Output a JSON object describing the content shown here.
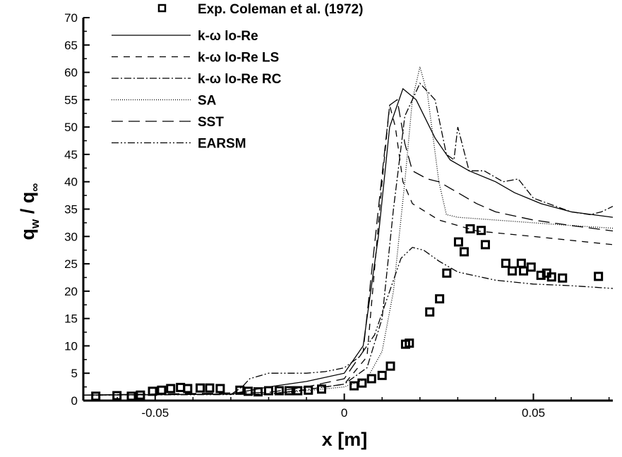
{
  "chart_data": {
    "type": "line",
    "title": "",
    "xlabel": "x [m]",
    "ylabel_main": "q",
    "ylabel_sub1": "w",
    "ylabel_sep": " / ",
    "ylabel_sub2": "∞",
    "xlim": [
      -0.069,
      0.071
    ],
    "ylim": [
      0,
      70
    ],
    "xticks": [
      -0.05,
      0,
      0.05
    ],
    "xtick_labels": [
      "-0.05",
      "0",
      "0.05"
    ],
    "yticks": [
      0,
      5,
      10,
      15,
      20,
      25,
      30,
      35,
      40,
      45,
      50,
      55,
      60,
      65,
      70
    ],
    "ytick_labels": [
      "0",
      "5",
      "10",
      "15",
      "20",
      "25",
      "30",
      "35",
      "40",
      "45",
      "50",
      "55",
      "60",
      "65",
      "70"
    ],
    "grid": false,
    "legend_position": "top-left",
    "experiment": {
      "name": "Exp. Coleman et al. (1972)",
      "x": [
        -0.0657,
        -0.0601,
        -0.0563,
        -0.0539,
        -0.0507,
        -0.0483,
        -0.0459,
        -0.0433,
        -0.0414,
        -0.0381,
        -0.0356,
        -0.0328,
        -0.0276,
        -0.0254,
        -0.0228,
        -0.02,
        -0.0172,
        -0.0146,
        -0.0123,
        -0.0095,
        -0.006,
        0.0026,
        0.0047,
        0.0072,
        0.01,
        0.0122,
        0.0162,
        0.0172,
        0.0226,
        0.0252,
        0.0271,
        0.0302,
        0.0317,
        0.0333,
        0.0362,
        0.0373,
        0.0427,
        0.0444,
        0.0468,
        0.0474,
        0.0494,
        0.052,
        0.0535,
        0.0548,
        0.0577,
        0.0672
      ],
      "y": [
        0.8,
        0.9,
        0.8,
        1.0,
        1.7,
        1.9,
        2.2,
        2.4,
        2.2,
        2.3,
        2.3,
        2.2,
        1.9,
        1.7,
        1.6,
        1.8,
        1.8,
        1.8,
        1.8,
        1.9,
        2.1,
        2.7,
        3.2,
        4.0,
        4.6,
        6.3,
        10.3,
        10.5,
        16.2,
        18.6,
        23.3,
        29.0,
        27.2,
        31.4,
        31.1,
        28.5,
        25.1,
        23.7,
        25.1,
        23.7,
        24.4,
        22.9,
        23.3,
        22.6,
        22.4,
        22.7
      ]
    },
    "series": [
      {
        "name": "k-ω lo-Re",
        "dash": "",
        "x": [
          -0.069,
          -0.03,
          -0.02,
          -0.01,
          0,
          0.005,
          0.009,
          0.012,
          0.0155,
          0.019,
          0.024,
          0.028,
          0.033,
          0.04,
          0.045,
          0.052,
          0.06,
          0.071
        ],
        "y": [
          1,
          1.2,
          2.5,
          3.5,
          5,
          10,
          30,
          50,
          57,
          55,
          48,
          44,
          42,
          40,
          38,
          36,
          34.5,
          33.5
        ]
      },
      {
        "name": "k-ω lo-Re LS",
        "dash": "9,8",
        "x": [
          -0.069,
          -0.02,
          -0.01,
          0,
          0.006,
          0.01,
          0.012,
          0.0135,
          0.0155,
          0.018,
          0.025,
          0.035,
          0.05,
          0.071
        ],
        "y": [
          1,
          1.2,
          2,
          3,
          8,
          40,
          54,
          50,
          40,
          36,
          33,
          31,
          30,
          28.5
        ]
      },
      {
        "name": "k-ω lo-Re RC",
        "dash": "10,3,2,3",
        "x": [
          -0.069,
          -0.02,
          -0.01,
          0,
          0.006,
          0.01,
          0.013,
          0.016,
          0.02,
          0.024,
          0.027,
          0.029,
          0.03,
          0.033,
          0.037,
          0.042,
          0.046,
          0.05,
          0.06,
          0.065,
          0.068,
          0.071
        ],
        "y": [
          1,
          1.2,
          2,
          3,
          6,
          15,
          35,
          52,
          58,
          55,
          45,
          44,
          50,
          42,
          42,
          40,
          40.5,
          37,
          34.5,
          34,
          34.5,
          35.5
        ]
      },
      {
        "name": "SA",
        "dash": "1,2",
        "x": [
          -0.069,
          -0.02,
          -0.01,
          0,
          0.006,
          0.01,
          0.013,
          0.016,
          0.018,
          0.02,
          0.022,
          0.025,
          0.027,
          0.03,
          0.04,
          0.05,
          0.06,
          0.071
        ],
        "y": [
          1,
          1.2,
          1.8,
          2.5,
          4,
          9,
          20,
          40,
          55,
          61,
          56,
          40,
          34,
          33.5,
          33,
          32.5,
          32,
          31.5
        ]
      },
      {
        "name": "SST",
        "dash": "16,8",
        "x": [
          -0.069,
          -0.02,
          -0.01,
          0,
          0.005,
          0.009,
          0.012,
          0.014,
          0.016,
          0.018,
          0.022,
          0.025,
          0.03,
          0.035,
          0.04,
          0.05,
          0.06,
          0.071
        ],
        "y": [
          1,
          1.5,
          2.5,
          4,
          9,
          35,
          54,
          55,
          47,
          42,
          40.5,
          40,
          38,
          36,
          34.5,
          33,
          32,
          31
        ]
      },
      {
        "name": "EARSM",
        "dash": "10,3,2,3,2,3",
        "x": [
          -0.069,
          -0.03,
          -0.027,
          -0.025,
          -0.02,
          -0.01,
          -0.005,
          0,
          0.004,
          0.008,
          0.012,
          0.015,
          0.018,
          0.021,
          0.025,
          0.03,
          0.04,
          0.05,
          0.06,
          0.071
        ],
        "y": [
          1,
          1.1,
          2.5,
          4,
          5,
          5,
          5.3,
          6,
          8,
          12,
          20,
          26,
          28,
          27.5,
          25.5,
          23.5,
          22,
          21.3,
          21,
          20.5
        ]
      }
    ]
  }
}
